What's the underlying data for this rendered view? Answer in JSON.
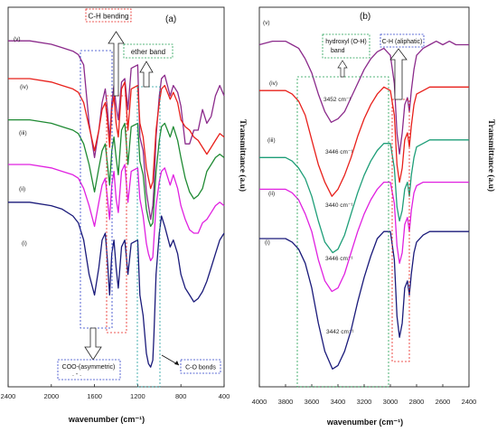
{
  "chart_data": [
    {
      "type": "line",
      "panel_label": "(a)",
      "xlabel": "wavenumber (cm⁻¹)",
      "ylabel": "",
      "xlim": [
        2400,
        400
      ],
      "xticks": [
        "2400",
        "2000",
        "1600",
        "1200",
        "800",
        "400"
      ],
      "series": [
        {
          "name": "(v)",
          "color": "#8B2A8B",
          "x": [
            2400,
            2200,
            2000,
            1900,
            1800,
            1750,
            1700,
            1650,
            1600,
            1560,
            1530,
            1500,
            1480,
            1460,
            1440,
            1420,
            1400,
            1380,
            1350,
            1320,
            1290,
            1260,
            1200,
            1180,
            1150,
            1120,
            1100,
            1080,
            1060,
            1050,
            1030,
            1000,
            980,
            950,
            900,
            870,
            830,
            800,
            760,
            720,
            680,
            640,
            600,
            560,
            520,
            480,
            440,
            400
          ],
          "y": [
            0.04,
            0.04,
            0.05,
            0.06,
            0.07,
            0.08,
            0.11,
            0.28,
            0.38,
            0.3,
            0.22,
            0.18,
            0.24,
            0.33,
            0.22,
            0.17,
            0.23,
            0.27,
            0.16,
            0.15,
            0.24,
            0.12,
            0.11,
            0.32,
            0.36,
            0.48,
            0.52,
            0.56,
            0.52,
            0.47,
            0.32,
            0.2,
            0.15,
            0.14,
            0.2,
            0.17,
            0.19,
            0.23,
            0.34,
            0.34,
            0.3,
            0.3,
            0.24,
            0.28,
            0.26,
            0.2,
            0.17,
            0.2
          ]
        },
        {
          "name": "(iv)",
          "color": "#E8201B",
          "x": [
            2400,
            2200,
            2000,
            1900,
            1800,
            1750,
            1700,
            1650,
            1600,
            1560,
            1530,
            1500,
            1480,
            1460,
            1440,
            1420,
            1400,
            1380,
            1350,
            1320,
            1290,
            1260,
            1200,
            1180,
            1150,
            1120,
            1100,
            1080,
            1060,
            1050,
            1030,
            1000,
            980,
            950,
            900,
            870,
            830,
            800,
            760,
            720,
            680,
            640,
            600,
            560,
            520,
            480,
            440,
            400
          ],
          "y": [
            0.15,
            0.15,
            0.16,
            0.17,
            0.18,
            0.19,
            0.22,
            0.29,
            0.36,
            0.3,
            0.24,
            0.22,
            0.27,
            0.35,
            0.24,
            0.2,
            0.28,
            0.32,
            0.18,
            0.16,
            0.3,
            0.18,
            0.17,
            0.28,
            0.32,
            0.41,
            0.44,
            0.47,
            0.45,
            0.4,
            0.3,
            0.22,
            0.18,
            0.17,
            0.21,
            0.19,
            0.22,
            0.27,
            0.29,
            0.3,
            0.32,
            0.33,
            0.35,
            0.37,
            0.35,
            0.33,
            0.31,
            0.32
          ]
        },
        {
          "name": "(iii)",
          "color": "#1F8A33",
          "x": [
            2400,
            2200,
            2000,
            1900,
            1800,
            1750,
            1700,
            1650,
            1600,
            1560,
            1530,
            1500,
            1480,
            1460,
            1440,
            1420,
            1400,
            1380,
            1350,
            1320,
            1290,
            1260,
            1200,
            1180,
            1150,
            1120,
            1100,
            1080,
            1060,
            1050,
            1030,
            1000,
            980,
            950,
            900,
            870,
            830,
            800,
            760,
            720,
            680,
            640,
            600,
            560,
            520,
            480,
            440,
            400
          ],
          "y": [
            0.27,
            0.27,
            0.28,
            0.29,
            0.3,
            0.31,
            0.34,
            0.4,
            0.48,
            0.41,
            0.36,
            0.34,
            0.4,
            0.46,
            0.36,
            0.32,
            0.38,
            0.43,
            0.3,
            0.28,
            0.4,
            0.29,
            0.28,
            0.39,
            0.43,
            0.53,
            0.56,
            0.58,
            0.57,
            0.52,
            0.42,
            0.33,
            0.29,
            0.28,
            0.32,
            0.29,
            0.33,
            0.38,
            0.44,
            0.48,
            0.5,
            0.49,
            0.47,
            0.42,
            0.4,
            0.38,
            0.37,
            0.38
          ]
        },
        {
          "name": "(ii)",
          "color": "#E020E0",
          "x": [
            2400,
            2200,
            2000,
            1900,
            1800,
            1750,
            1700,
            1650,
            1600,
            1560,
            1530,
            1500,
            1480,
            1460,
            1440,
            1420,
            1400,
            1380,
            1350,
            1320,
            1290,
            1260,
            1200,
            1180,
            1150,
            1120,
            1100,
            1080,
            1060,
            1050,
            1030,
            1000,
            980,
            950,
            900,
            870,
            830,
            800,
            760,
            720,
            680,
            640,
            600,
            560,
            520,
            480,
            440,
            400
          ],
          "y": [
            0.4,
            0.4,
            0.41,
            0.42,
            0.43,
            0.44,
            0.47,
            0.52,
            0.58,
            0.51,
            0.46,
            0.44,
            0.5,
            0.56,
            0.46,
            0.42,
            0.5,
            0.54,
            0.42,
            0.4,
            0.51,
            0.42,
            0.41,
            0.5,
            0.55,
            0.63,
            0.66,
            0.68,
            0.67,
            0.62,
            0.52,
            0.45,
            0.42,
            0.41,
            0.46,
            0.43,
            0.47,
            0.52,
            0.56,
            0.59,
            0.6,
            0.6,
            0.57,
            0.56,
            0.54,
            0.52,
            0.51,
            0.52
          ]
        },
        {
          "name": "(i)",
          "color": "#1A1A7A",
          "x": [
            2400,
            2200,
            2000,
            1900,
            1800,
            1750,
            1700,
            1650,
            1600,
            1560,
            1530,
            1500,
            1480,
            1460,
            1440,
            1420,
            1400,
            1380,
            1350,
            1320,
            1290,
            1260,
            1200,
            1180,
            1150,
            1120,
            1100,
            1080,
            1060,
            1050,
            1030,
            1000,
            980,
            950,
            900,
            870,
            830,
            800,
            760,
            720,
            680,
            640,
            600,
            560,
            520,
            480,
            440,
            400
          ],
          "y": [
            0.51,
            0.51,
            0.52,
            0.53,
            0.55,
            0.57,
            0.62,
            0.72,
            0.78,
            0.7,
            0.62,
            0.6,
            0.68,
            0.78,
            0.66,
            0.62,
            0.7,
            0.76,
            0.64,
            0.62,
            0.72,
            0.63,
            0.62,
            0.78,
            0.84,
            0.95,
            0.98,
            0.99,
            0.97,
            0.9,
            0.72,
            0.6,
            0.55,
            0.58,
            0.64,
            0.62,
            0.66,
            0.72,
            0.76,
            0.78,
            0.8,
            0.79,
            0.77,
            0.74,
            0.7,
            0.66,
            0.62,
            0.6
          ]
        }
      ],
      "annotations": [
        "C-H bending",
        "ether band",
        "COO-(asymmetric)",
        "C-O bonds"
      ]
    },
    {
      "type": "line",
      "panel_label": "(b)",
      "xlabel": "wavenumber (cm⁻¹)",
      "ylabel": "Transmittance (a.u)",
      "xlim": [
        4000,
        2400
      ],
      "xticks": [
        "4000",
        "3800",
        "3600",
        "3400",
        "3200",
        "3000",
        "2800",
        "2600",
        "2400"
      ],
      "series": [
        {
          "name": "(v)",
          "color": "#8B2A8B",
          "x": [
            4000,
            3900,
            3800,
            3750,
            3700,
            3650,
            3600,
            3550,
            3500,
            3452,
            3400,
            3350,
            3300,
            3250,
            3200,
            3150,
            3100,
            3050,
            3000,
            2970,
            2950,
            2930,
            2910,
            2890,
            2870,
            2855,
            2840,
            2820,
            2800,
            2750,
            2700,
            2650,
            2600,
            2550,
            2500,
            2450,
            2400
          ],
          "y": [
            0.05,
            0.04,
            0.04,
            0.05,
            0.06,
            0.09,
            0.13,
            0.19,
            0.24,
            0.27,
            0.26,
            0.24,
            0.2,
            0.16,
            0.12,
            0.09,
            0.07,
            0.06,
            0.08,
            0.16,
            0.3,
            0.36,
            0.3,
            0.22,
            0.2,
            0.24,
            0.18,
            0.12,
            0.08,
            0.06,
            0.05,
            0.04,
            0.05,
            0.04,
            0.05,
            0.05,
            0.05
          ]
        },
        {
          "name": "(iv)",
          "color": "#E8201B",
          "x": [
            4000,
            3900,
            3800,
            3750,
            3700,
            3650,
            3600,
            3550,
            3500,
            3446,
            3400,
            3350,
            3300,
            3250,
            3200,
            3150,
            3100,
            3050,
            3000,
            2970,
            2950,
            2930,
            2910,
            2890,
            2870,
            2855,
            2840,
            2820,
            2800,
            2750,
            2700,
            2650,
            2600,
            2550,
            2500,
            2450,
            2400
          ],
          "y": [
            0.18,
            0.18,
            0.18,
            0.19,
            0.21,
            0.25,
            0.32,
            0.39,
            0.44,
            0.48,
            0.46,
            0.42,
            0.37,
            0.31,
            0.26,
            0.22,
            0.19,
            0.17,
            0.18,
            0.25,
            0.39,
            0.44,
            0.4,
            0.32,
            0.3,
            0.34,
            0.28,
            0.22,
            0.19,
            0.18,
            0.17,
            0.17,
            0.17,
            0.17,
            0.17,
            0.17,
            0.17
          ]
        },
        {
          "name": "(iii)",
          "color": "#1E9E78",
          "x": [
            4000,
            3900,
            3800,
            3750,
            3700,
            3650,
            3600,
            3550,
            3500,
            3440,
            3400,
            3350,
            3300,
            3250,
            3200,
            3150,
            3100,
            3050,
            3000,
            2970,
            2950,
            2930,
            2910,
            2890,
            2870,
            2855,
            2840,
            2820,
            2800,
            2750,
            2700,
            2650,
            2600,
            2550,
            2500,
            2450,
            2400
          ],
          "y": [
            0.37,
            0.37,
            0.37,
            0.38,
            0.4,
            0.43,
            0.48,
            0.55,
            0.61,
            0.64,
            0.63,
            0.59,
            0.53,
            0.47,
            0.42,
            0.38,
            0.35,
            0.33,
            0.33,
            0.4,
            0.51,
            0.55,
            0.52,
            0.46,
            0.44,
            0.48,
            0.42,
            0.37,
            0.34,
            0.33,
            0.32,
            0.32,
            0.32,
            0.32,
            0.32,
            0.32,
            0.32
          ]
        },
        {
          "name": "(ii)",
          "color": "#E020E0",
          "x": [
            4000,
            3900,
            3800,
            3750,
            3700,
            3650,
            3600,
            3550,
            3500,
            3446,
            3400,
            3350,
            3300,
            3250,
            3200,
            3150,
            3100,
            3050,
            3000,
            2970,
            2950,
            2930,
            2910,
            2890,
            2870,
            2855,
            2840,
            2820,
            2800,
            2750,
            2700,
            2650,
            2600,
            2550,
            2500,
            2450,
            2400
          ],
          "y": [
            0.46,
            0.46,
            0.46,
            0.47,
            0.49,
            0.53,
            0.58,
            0.66,
            0.72,
            0.75,
            0.74,
            0.7,
            0.64,
            0.58,
            0.53,
            0.49,
            0.46,
            0.44,
            0.44,
            0.5,
            0.62,
            0.67,
            0.64,
            0.56,
            0.54,
            0.58,
            0.52,
            0.47,
            0.45,
            0.44,
            0.44,
            0.44,
            0.44,
            0.44,
            0.44,
            0.44,
            0.44
          ]
        },
        {
          "name": "(i)",
          "color": "#1A1A7A",
          "x": [
            4000,
            3900,
            3800,
            3750,
            3700,
            3650,
            3600,
            3550,
            3500,
            3442,
            3400,
            3350,
            3300,
            3250,
            3200,
            3150,
            3100,
            3050,
            3000,
            2970,
            2950,
            2930,
            2910,
            2890,
            2870,
            2855,
            2840,
            2820,
            2800,
            2750,
            2700,
            2650,
            2600,
            2550,
            2500,
            2450,
            2400
          ],
          "y": [
            0.6,
            0.6,
            0.6,
            0.61,
            0.63,
            0.67,
            0.74,
            0.84,
            0.92,
            0.97,
            0.96,
            0.92,
            0.86,
            0.78,
            0.71,
            0.65,
            0.6,
            0.58,
            0.58,
            0.66,
            0.82,
            0.88,
            0.84,
            0.74,
            0.72,
            0.76,
            0.7,
            0.64,
            0.61,
            0.59,
            0.58,
            0.58,
            0.58,
            0.58,
            0.58,
            0.58,
            0.58
          ]
        }
      ],
      "peak_labels": [
        "3452 cm⁻¹",
        "3446 cm⁻¹",
        "3440 cm⁻¹",
        "3446 cm⁻¹",
        "3442 cm⁻¹"
      ],
      "annotations": [
        "hydroxyl (O-H) band",
        "C-H (aliphatic)"
      ]
    }
  ],
  "texts": {
    "panel_a": "(a)",
    "panel_b": "(b)",
    "ch_bending": "C-H bending",
    "ether_band": "ether band",
    "coo": "COO-(asymmetric)",
    "coo_sub": ". - .",
    "co_bonds": "C-O bonds",
    "hydroxyl_l1": "hydroxyl (O-H)",
    "hydroxyl_l2": "band",
    "ch_aliphatic": "C-H (aliphatic)",
    "ylabel_a": "Transmittance (a.u)",
    "ylabel_b": "Transmittance (a.u)",
    "xlabel_a": "wavenumber (cm⁻¹)",
    "xlabel_b": "wavenumber (cm⁻¹)",
    "curve_labels": [
      "(v)",
      "(iv)",
      "(iii)",
      "(ii)",
      "(i)"
    ]
  },
  "colors": {
    "red_box": "#E8201B",
    "green_box": "#1F9E50",
    "blue_box": "#2A3CC8",
    "teal_box": "#1E9E9E"
  }
}
